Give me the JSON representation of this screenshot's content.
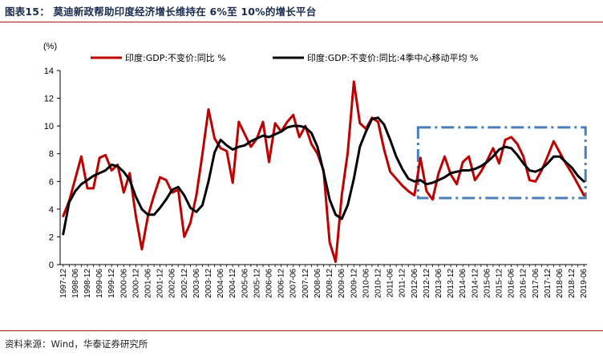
{
  "header": {
    "title": "图表15：  莫迪新政帮助印度经济增长维持在 6%至 10%的增长平台"
  },
  "footer": {
    "source": "资料来源：Wind，华泰证券研究所"
  },
  "colors": {
    "series_main": "#c00000",
    "series_ma": "#000000",
    "highlight_box": "#4a7ebb",
    "rule": "#a61c1c"
  },
  "chart_data": {
    "type": "line",
    "unit": "(%)",
    "ylim": [
      0,
      14
    ],
    "yticks": [
      0,
      2,
      4,
      6,
      8,
      10,
      12,
      14
    ],
    "x_tick_labels": [
      "1997-12",
      "1998-06",
      "1998-12",
      "1999-06",
      "1999-12",
      "2000-06",
      "2000-12",
      "2001-06",
      "2001-12",
      "2002-06",
      "2002-12",
      "2003-06",
      "2003-12",
      "2004-06",
      "2004-12",
      "2005-06",
      "2005-12",
      "2006-06",
      "2006-12",
      "2007-06",
      "2007-12",
      "2008-06",
      "2008-12",
      "2009-06",
      "2009-12",
      "2010-06",
      "2010-12",
      "2011-06",
      "2011-12",
      "2012-06",
      "2012-12",
      "2013-06",
      "2013-12",
      "2014-06",
      "2014-12",
      "2015-06",
      "2015-12",
      "2016-06",
      "2016-12",
      "2017-06",
      "2017-12",
      "2018-06",
      "2018-12",
      "2019-06"
    ],
    "x": [
      "1997-12",
      "1998-03",
      "1998-06",
      "1998-09",
      "1998-12",
      "1999-03",
      "1999-06",
      "1999-09",
      "1999-12",
      "2000-03",
      "2000-06",
      "2000-09",
      "2000-12",
      "2001-03",
      "2001-06",
      "2001-09",
      "2001-12",
      "2002-03",
      "2002-06",
      "2002-09",
      "2002-12",
      "2003-03",
      "2003-06",
      "2003-09",
      "2003-12",
      "2004-03",
      "2004-06",
      "2004-09",
      "2004-12",
      "2005-03",
      "2005-06",
      "2005-09",
      "2005-12",
      "2006-03",
      "2006-06",
      "2006-09",
      "2006-12",
      "2007-03",
      "2007-06",
      "2007-09",
      "2007-12",
      "2008-03",
      "2008-06",
      "2008-09",
      "2008-12",
      "2009-03",
      "2009-06",
      "2009-09",
      "2009-12",
      "2010-03",
      "2010-06",
      "2010-09",
      "2010-12",
      "2011-03",
      "2011-06",
      "2011-09",
      "2011-12",
      "2012-03",
      "2012-06",
      "2012-09",
      "2012-12",
      "2013-03",
      "2013-06",
      "2013-09",
      "2013-12",
      "2014-03",
      "2014-06",
      "2014-09",
      "2014-12",
      "2015-03",
      "2015-06",
      "2015-09",
      "2015-12",
      "2016-03",
      "2016-06",
      "2016-09",
      "2016-12",
      "2017-03",
      "2017-06",
      "2017-09",
      "2017-12",
      "2018-03",
      "2018-06",
      "2018-09",
      "2018-12",
      "2019-03",
      "2019-06"
    ],
    "series": [
      {
        "name": "印度:GDP:不变价:同比 %",
        "color": "#c00000",
        "values": [
          3.5,
          4.6,
          6.2,
          7.8,
          5.5,
          5.5,
          7.7,
          7.9,
          6.8,
          7.2,
          5.2,
          6.6,
          3.5,
          1.1,
          3.5,
          5.0,
          6.3,
          6.1,
          5.2,
          5.4,
          2.0,
          3.0,
          5.0,
          8.0,
          11.2,
          9.1,
          8.4,
          8.2,
          5.9,
          10.3,
          9.4,
          8.5,
          9.1,
          10.3,
          7.4,
          10.2,
          9.6,
          10.3,
          10.8,
          9.2,
          10.0,
          8.7,
          8.0,
          6.8,
          1.6,
          0.2,
          5.0,
          8.1,
          13.2,
          10.2,
          9.8,
          10.6,
          10.3,
          8.3,
          6.7,
          6.2,
          5.7,
          5.3,
          5.0,
          7.7,
          5.3,
          4.7,
          6.6,
          7.8,
          6.5,
          5.8,
          7.4,
          7.8,
          6.1,
          6.7,
          7.5,
          8.4,
          7.3,
          9.0,
          9.2,
          8.7,
          7.8,
          6.1,
          6.0,
          6.8,
          7.8,
          8.9,
          8.1,
          7.3,
          6.6,
          5.8,
          5.0
        ]
      },
      {
        "name": "印度:GDP:不变价:同比:4季中心移动平均 %",
        "color": "#000000",
        "values": [
          2.2,
          4.5,
          5.3,
          5.8,
          6.1,
          6.4,
          6.6,
          6.8,
          7.2,
          7.1,
          6.7,
          6.1,
          4.9,
          4.0,
          3.6,
          3.6,
          4.1,
          4.7,
          5.4,
          5.6,
          5.0,
          4.1,
          3.8,
          4.3,
          6.0,
          8.1,
          9.0,
          8.6,
          8.3,
          8.5,
          8.6,
          8.9,
          9.1,
          9.3,
          9.2,
          9.4,
          9.6,
          9.9,
          10.0,
          10.0,
          9.9,
          9.5,
          8.5,
          6.7,
          4.7,
          3.6,
          3.3,
          4.3,
          6.2,
          8.5,
          9.6,
          10.5,
          10.6,
          10.1,
          9.0,
          7.8,
          6.9,
          6.2,
          6.0,
          6.1,
          5.8,
          5.9,
          6.1,
          6.3,
          6.6,
          6.7,
          6.8,
          6.8,
          6.9,
          7.1,
          7.4,
          7.8,
          8.3,
          8.5,
          8.4,
          7.9,
          7.3,
          6.8,
          6.7,
          6.9,
          7.3,
          7.8,
          7.8,
          7.4,
          7.0,
          6.4,
          6.0
        ]
      }
    ],
    "annotations": [
      {
        "type": "dashed_rect",
        "x_from": "2012-09",
        "x_to": "2019-06",
        "y_from": 4.8,
        "y_to": 9.9
      }
    ],
    "legend": {
      "position": "top",
      "entries": [
        "印度:GDP:不变价:同比 %",
        "印度:GDP:不变价:同比:4季中心移动平均 %"
      ]
    },
    "grid": false
  }
}
